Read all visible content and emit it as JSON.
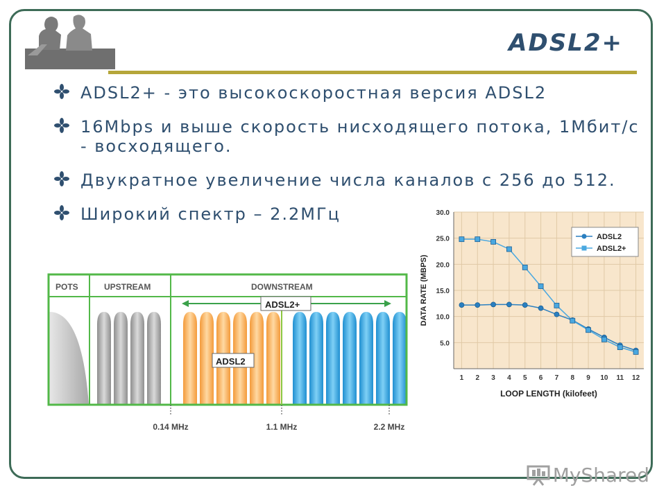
{
  "slide": {
    "title": "ADSL2+",
    "bullets": [
      "ADSL2+ - это высокоскоростная версия ADSL2",
      " 16Mbps и выше скорость нисходящего потока, 1Мбит/с - восходящего.",
      " Двукратное увеличение числа каналов с 256 до 512.",
      " Широкий спектр – 2.2МГц"
    ],
    "accent_color": "#2f4f6f",
    "frame_color": "#3d6b57",
    "rule_color": "#b5a63a",
    "watermark": "MyShared"
  },
  "chart_data": [
    {
      "type": "area",
      "x_unit": "MHz",
      "bands": [
        {
          "label": "POTS"
        },
        {
          "label": "UPSTREAM"
        },
        {
          "label": "DOWNSTREAM"
        }
      ],
      "annotations": [
        "ADSL2+",
        "ADSL2"
      ],
      "ticks": [
        "0.14 MHz",
        "1.1 MHz",
        "2.2 MHz"
      ],
      "colors": {
        "pots": "#bcbcbc",
        "upstream": "#a8a8a8",
        "adsl2": "#f5b060",
        "adsl2plus": "#3aa6de",
        "border": "#52b848"
      }
    },
    {
      "type": "line",
      "ylabel": "DATA RATE (MBPS)",
      "xlabel": "LOOP LENGTH (kilofeet)",
      "x": [
        1,
        2,
        3,
        4,
        5,
        6,
        7,
        8,
        9,
        10,
        11,
        12
      ],
      "xlim": [
        0.5,
        12.5
      ],
      "ylim": [
        0,
        30
      ],
      "yticks": [
        "5.0",
        "10.0",
        "15.0",
        "20.0",
        "25.0",
        "30.0"
      ],
      "ytick_values": [
        5,
        10,
        15,
        20,
        25,
        30
      ],
      "series": [
        {
          "name": "ADSL2",
          "marker": "circle",
          "color": "#2a7fc0",
          "values": [
            12.2,
            12.2,
            12.3,
            12.3,
            12.2,
            11.6,
            10.4,
            9.3,
            7.6,
            6.0,
            4.5,
            3.5
          ]
        },
        {
          "name": "ADSL2+",
          "marker": "square",
          "color": "#4aa8e0",
          "values": [
            24.8,
            24.8,
            24.3,
            22.9,
            19.4,
            15.8,
            12.1,
            9.2,
            7.4,
            5.6,
            4.1,
            3.2
          ]
        }
      ],
      "legend": "top-right",
      "background": "#f8e6cc"
    }
  ]
}
